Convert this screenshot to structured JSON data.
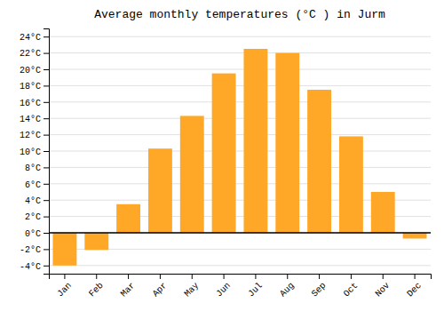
{
  "chart_data": {
    "type": "bar",
    "title": "Average monthly temperatures (°C ) in Jurm",
    "categories": [
      "Jan",
      "Feb",
      "Mar",
      "Apr",
      "May",
      "Jun",
      "Jul",
      "Aug",
      "Sep",
      "Oct",
      "Nov",
      "Dec"
    ],
    "values": [
      -4.0,
      -2.1,
      3.5,
      10.3,
      14.3,
      19.5,
      22.5,
      22.0,
      17.5,
      11.8,
      5.0,
      -0.7
    ],
    "color": "#FFA726",
    "ylim": [
      -5,
      25
    ],
    "yticks": [
      {
        "value": -4,
        "label": "-4°C"
      },
      {
        "value": -2,
        "label": "-2°C"
      },
      {
        "value": 0,
        "label": "0°C"
      },
      {
        "value": 2,
        "label": "2°C"
      },
      {
        "value": 4,
        "label": "4°C"
      },
      {
        "value": 6,
        "label": "6°C"
      },
      {
        "value": 8,
        "label": "8°C"
      },
      {
        "value": 10,
        "label": "10°C"
      },
      {
        "value": 12,
        "label": "12°C"
      },
      {
        "value": 14,
        "label": "14°C"
      },
      {
        "value": 16,
        "label": "16°C"
      },
      {
        "value": 18,
        "label": "18°C"
      },
      {
        "value": 20,
        "label": "20°C"
      },
      {
        "value": 22,
        "label": "22°C"
      },
      {
        "value": 24,
        "label": "24°C"
      }
    ],
    "grid": true
  }
}
